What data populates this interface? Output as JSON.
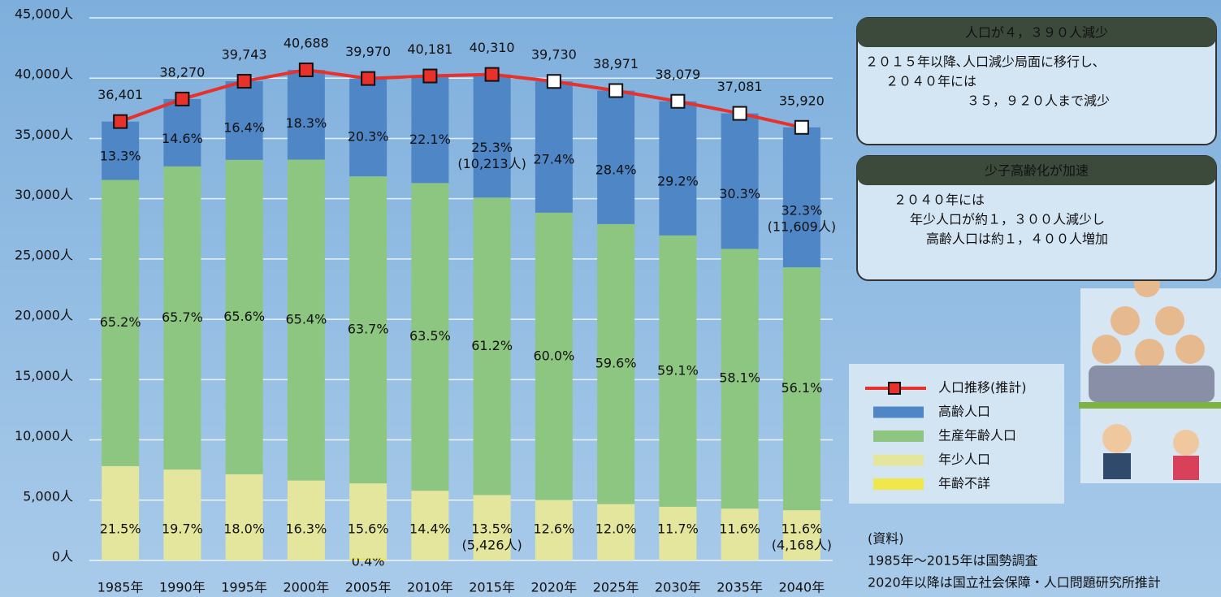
{
  "chart_data": {
    "type": "bar",
    "categories": [
      "1985年",
      "1990年",
      "1995年",
      "2000年",
      "2005年",
      "2010年",
      "2015年",
      "2020年",
      "2025年",
      "2030年",
      "2035年",
      "2040年"
    ],
    "ylim": [
      0,
      45000
    ],
    "yticks": [
      {
        "value": 0,
        "label": "0人"
      },
      {
        "value": 5000,
        "label": "5,000人"
      },
      {
        "value": 10000,
        "label": "10,000人"
      },
      {
        "value": 15000,
        "label": "15,000人"
      },
      {
        "value": 20000,
        "label": "20,000人"
      },
      {
        "value": 25000,
        "label": "25,000人"
      },
      {
        "value": 30000,
        "label": "30,000人"
      },
      {
        "value": 35000,
        "label": "35,000人"
      },
      {
        "value": 40000,
        "label": "40,000人"
      },
      {
        "value": 45000,
        "label": "45,000人"
      }
    ],
    "grid": true,
    "series": [
      {
        "name": "年少人口",
        "type": "bar",
        "color": "#e3e69c",
        "values": [
          7826,
          7539,
          7154,
          6632,
          6235,
          5786,
          5426,
          5006,
          4677,
          4455,
          4301,
          4168
        ],
        "share_labels": [
          "21.5%",
          "19.7%",
          "18.0%",
          "16.3%",
          "15.6%",
          "14.4%",
          "13.5%",
          "12.6%",
          "12.0%",
          "11.7%",
          "11.6%",
          "11.6%"
        ],
        "count_labels": [
          null,
          null,
          null,
          null,
          null,
          null,
          "(5,426人)",
          null,
          null,
          null,
          null,
          "(4,168人)"
        ]
      },
      {
        "name": "生産年齢人口",
        "type": "bar",
        "color": "#8cc680",
        "values": [
          23733,
          25143,
          26071,
          26610,
          25461,
          25515,
          24671,
          23838,
          23227,
          22505,
          21544,
          20143
        ],
        "share_labels": [
          "65.2%",
          "65.7%",
          "65.6%",
          "65.4%",
          "63.7%",
          "63.5%",
          "61.2%",
          "60.0%",
          "59.6%",
          "59.1%",
          "58.1%",
          "56.1%"
        ]
      },
      {
        "name": "高齢人口",
        "type": "bar",
        "color": "#4f86c6",
        "values": [
          4841,
          5587,
          6518,
          7446,
          8114,
          8880,
          10213,
          10886,
          11068,
          11119,
          11236,
          11609
        ],
        "share_labels": [
          "13.3%",
          "14.6%",
          "16.4%",
          "18.3%",
          "20.3%",
          "22.1%",
          "25.3%",
          "27.4%",
          "28.4%",
          "29.2%",
          "30.3%",
          "32.3%"
        ],
        "count_labels": [
          null,
          null,
          null,
          null,
          null,
          null,
          "(10,213人)",
          null,
          null,
          null,
          null,
          "(11,609人)"
        ]
      },
      {
        "name": "年齢不詳",
        "type": "bar",
        "color": "#f0e84a",
        "values": [
          null,
          null,
          null,
          null,
          160,
          null,
          null,
          null,
          null,
          null,
          null,
          null
        ],
        "share_labels": [
          null,
          null,
          null,
          null,
          "0.4%",
          null,
          null,
          null,
          null,
          null,
          null,
          null
        ]
      },
      {
        "name": "人口推移(推計)",
        "type": "line",
        "color": "#e8312a",
        "values": [
          36401,
          38270,
          39743,
          40688,
          39970,
          40181,
          40310,
          39730,
          38971,
          38079,
          37081,
          35920
        ],
        "value_labels": [
          "36,401",
          "38,270",
          "39,743",
          "40,688",
          "39,970",
          "40,181",
          "40,310",
          "39,730",
          "38,971",
          "38,079",
          "37,081",
          "35,920"
        ],
        "marker_colors": [
          "#e8312a",
          "#e8312a",
          "#e8312a",
          "#e8312a",
          "#e8312a",
          "#e8312a",
          "#e8312a",
          "#ffffff",
          "#ffffff",
          "#ffffff",
          "#ffffff",
          "#ffffff"
        ]
      }
    ],
    "panels": [
      {
        "title": "人口が４，３９０人減少",
        "lines": [
          "２０１５年以降､人口減少局面に移行し､",
          "２０４０年には",
          "３５，９２０人まで減少"
        ]
      },
      {
        "title": "少子高齢化が加速",
        "lines": [
          "２０４０年には",
          "年少人口が約１，３００人減少し",
          "高齢人口は約１，４００人増加"
        ]
      }
    ],
    "source": [
      "(資料)",
      "1985年～2015年は国勢調査",
      "2020年以降は国立社会保障・人口問題研究所推計"
    ]
  }
}
